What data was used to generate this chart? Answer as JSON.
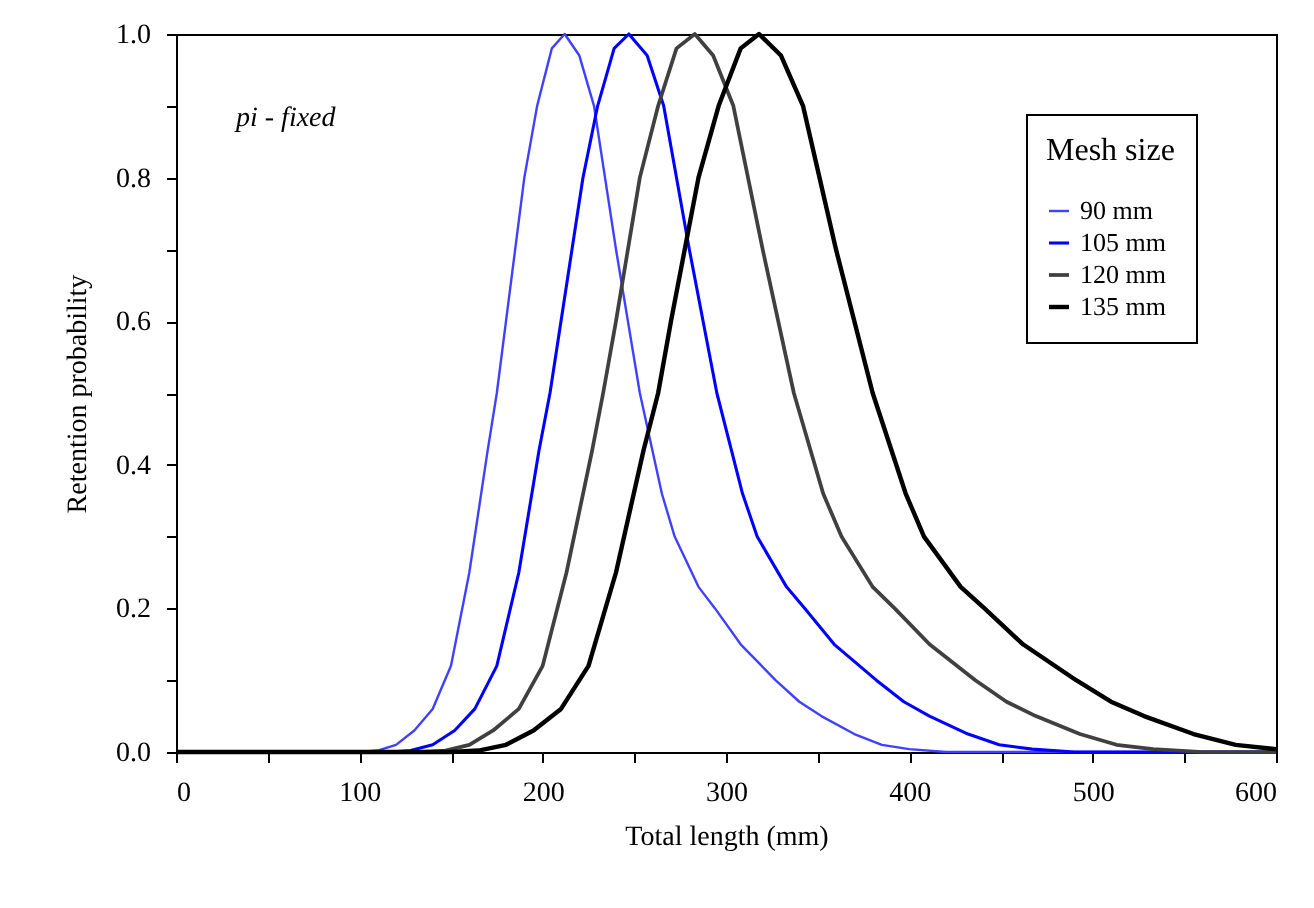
{
  "chart_data": {
    "type": "line",
    "xlabel": "Total length (mm)",
    "ylabel": "Retention probability",
    "legend_title": "Mesh size",
    "legend": "top right",
    "grid": false,
    "annotations": [
      "pi - fixed"
    ],
    "xlim": [
      0,
      600
    ],
    "ylim": [
      0,
      1
    ],
    "xticks": [
      0,
      {
        "value": 50,
        "label": null
      },
      100,
      {
        "value": 150,
        "label": null
      },
      200,
      {
        "value": 250,
        "label": null
      },
      300,
      {
        "value": 350,
        "label": null
      },
      400,
      {
        "value": 450,
        "label": null
      },
      500,
      {
        "value": 550,
        "label": null
      },
      600
    ],
    "yticks": [
      {
        "value": 0,
        "label": "0.0"
      },
      {
        "value": 0.1,
        "label": null
      },
      {
        "value": 0.2,
        "label": "0.2"
      },
      {
        "value": 0.3,
        "label": null
      },
      {
        "value": 0.4,
        "label": "0.4"
      },
      {
        "value": 0.5,
        "label": null
      },
      {
        "value": 0.6,
        "label": "0.6"
      },
      {
        "value": 0.7,
        "label": null
      },
      {
        "value": 0.8,
        "label": "0.8"
      },
      {
        "value": 0.9,
        "label": null
      },
      {
        "value": 1,
        "label": "1.0"
      }
    ],
    "series": [
      {
        "name": "90 mm",
        "color": "#4040ff",
        "x": [
          0,
          100,
          110,
          120,
          130,
          140,
          150,
          160,
          170,
          175,
          180,
          190,
          197,
          205,
          212,
          220,
          228,
          240,
          253,
          265,
          272,
          285,
          294,
          308,
          327,
          340,
          352,
          370,
          385,
          400,
          420,
          600
        ],
        "values": [
          0,
          0,
          0.002,
          0.01,
          0.03,
          0.06,
          0.12,
          0.25,
          0.42,
          0.5,
          0.6,
          0.8,
          0.9,
          0.98,
          1.0,
          0.97,
          0.9,
          0.7,
          0.5,
          0.36,
          0.3,
          0.23,
          0.2,
          0.15,
          0.1,
          0.07,
          0.05,
          0.025,
          0.01,
          0.004,
          0,
          0
        ]
      },
      {
        "name": "105 mm",
        "color": "#0000ff",
        "x": [
          0,
          117,
          128,
          140,
          152,
          163,
          175,
          187,
          198,
          204,
          210,
          222,
          230,
          239,
          247,
          257,
          266,
          280,
          295,
          309,
          317,
          333,
          343,
          359,
          382,
          397,
          411,
          432,
          449,
          467,
          490,
          600
        ],
        "values": [
          0,
          0,
          0.002,
          0.01,
          0.03,
          0.06,
          0.12,
          0.25,
          0.42,
          0.5,
          0.6,
          0.8,
          0.9,
          0.98,
          1.0,
          0.97,
          0.9,
          0.7,
          0.5,
          0.36,
          0.3,
          0.23,
          0.2,
          0.15,
          0.1,
          0.07,
          0.05,
          0.025,
          0.01,
          0.004,
          0,
          0
        ]
      },
      {
        "name": "120 mm",
        "color": "#404040",
        "x": [
          0,
          133,
          147,
          160,
          173,
          187,
          200,
          213,
          227,
          233,
          240,
          253,
          263,
          273,
          283,
          293,
          304,
          320,
          337,
          353,
          363,
          380,
          392,
          411,
          436,
          453,
          469,
          493,
          513,
          533,
          560,
          600
        ],
        "values": [
          0,
          0,
          0.002,
          0.01,
          0.03,
          0.06,
          0.12,
          0.25,
          0.42,
          0.5,
          0.6,
          0.8,
          0.9,
          0.98,
          1.0,
          0.97,
          0.9,
          0.7,
          0.5,
          0.36,
          0.3,
          0.23,
          0.2,
          0.15,
          0.1,
          0.07,
          0.05,
          0.025,
          0.01,
          0.004,
          0,
          0
        ]
      },
      {
        "name": "135 mm",
        "color": "#000000",
        "x": [
          0,
          150,
          165,
          180,
          195,
          210,
          225,
          240,
          255,
          263,
          270,
          285,
          296,
          308,
          318,
          330,
          342,
          360,
          380,
          398,
          408,
          428,
          441,
          462,
          491,
          510,
          528,
          555,
          578,
          600
        ],
        "values": [
          0,
          0,
          0.002,
          0.01,
          0.03,
          0.06,
          0.12,
          0.25,
          0.42,
          0.5,
          0.6,
          0.8,
          0.9,
          0.98,
          1.0,
          0.97,
          0.9,
          0.7,
          0.5,
          0.36,
          0.3,
          0.23,
          0.2,
          0.15,
          0.1,
          0.07,
          0.05,
          0.025,
          0.01,
          0.004
        ]
      }
    ]
  }
}
